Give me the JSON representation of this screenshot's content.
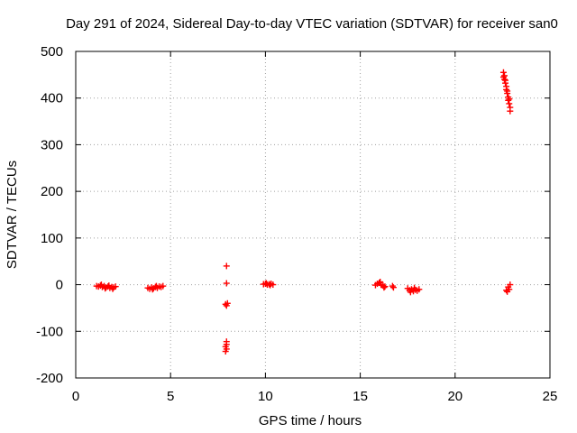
{
  "chart_data": {
    "type": "scatter",
    "title": "Day 291 of 2024, Sidereal Day-to-day VTEC variation (SDTVAR) for receiver san0",
    "xlabel": "GPS time / hours",
    "ylabel": "SDTVAR / TECUs",
    "xlim": [
      0,
      25
    ],
    "ylim": [
      -200,
      500
    ],
    "xticks": [
      0,
      5,
      10,
      15,
      20,
      25
    ],
    "yticks": [
      -200,
      -100,
      0,
      100,
      200,
      300,
      400,
      500
    ],
    "xtick_labels": [
      "0",
      "5",
      "10",
      "15",
      "20",
      "25"
    ],
    "ytick_labels": [
      "-200",
      "-100",
      "0",
      "100",
      "200",
      "300",
      "400",
      "500"
    ],
    "grid": true,
    "marker": "plus",
    "color": "#ff0000",
    "series": [
      {
        "name": "SDTVAR",
        "points": [
          [
            1.1,
            -3
          ],
          [
            1.2,
            -4
          ],
          [
            1.3,
            -2
          ],
          [
            1.4,
            -5
          ],
          [
            1.5,
            -3
          ],
          [
            1.6,
            -6
          ],
          [
            1.7,
            -4
          ],
          [
            1.8,
            -7
          ],
          [
            1.9,
            -5
          ],
          [
            2.0,
            -6
          ],
          [
            2.1,
            -4
          ],
          [
            1.35,
            0
          ],
          [
            1.55,
            -8
          ],
          [
            1.75,
            -2
          ],
          [
            1.95,
            -9
          ],
          [
            3.8,
            -7
          ],
          [
            3.9,
            -9
          ],
          [
            4.0,
            -6
          ],
          [
            4.1,
            -8
          ],
          [
            4.2,
            -5
          ],
          [
            4.3,
            -7
          ],
          [
            4.4,
            -4
          ],
          [
            4.5,
            -5
          ],
          [
            4.6,
            -3
          ],
          [
            4.05,
            -10
          ],
          [
            4.25,
            -3
          ],
          [
            7.95,
            40
          ],
          [
            7.95,
            3
          ],
          [
            7.9,
            -42
          ],
          [
            7.95,
            -45
          ],
          [
            8.0,
            -40
          ],
          [
            7.95,
            -122
          ],
          [
            7.95,
            -128
          ],
          [
            7.9,
            -133
          ],
          [
            7.95,
            -138
          ],
          [
            7.9,
            -143
          ],
          [
            9.9,
            1
          ],
          [
            10.0,
            2
          ],
          [
            10.1,
            0
          ],
          [
            10.2,
            1
          ],
          [
            10.3,
            2
          ],
          [
            10.4,
            0
          ],
          [
            10.05,
            3
          ],
          [
            10.25,
            -1
          ],
          [
            15.8,
            -1
          ],
          [
            15.9,
            2
          ],
          [
            16.0,
            4
          ],
          [
            16.1,
            0
          ],
          [
            16.2,
            -2
          ],
          [
            16.3,
            -4
          ],
          [
            16.05,
            6
          ],
          [
            16.25,
            -6
          ],
          [
            16.7,
            -3
          ],
          [
            16.75,
            -6
          ],
          [
            17.5,
            -8
          ],
          [
            17.6,
            -12
          ],
          [
            17.7,
            -10
          ],
          [
            17.8,
            -14
          ],
          [
            17.9,
            -11
          ],
          [
            18.0,
            -13
          ],
          [
            18.1,
            -10
          ],
          [
            17.65,
            -16
          ],
          [
            17.85,
            -7
          ],
          [
            22.55,
            455
          ],
          [
            22.6,
            448
          ],
          [
            22.6,
            440
          ],
          [
            22.65,
            432
          ],
          [
            22.7,
            425
          ],
          [
            22.7,
            418
          ],
          [
            22.75,
            410
          ],
          [
            22.8,
            402
          ],
          [
            22.8,
            395
          ],
          [
            22.85,
            388
          ],
          [
            22.9,
            380
          ],
          [
            22.9,
            372
          ],
          [
            22.55,
            445
          ],
          [
            22.65,
            438
          ],
          [
            22.75,
            415
          ],
          [
            22.85,
            398
          ],
          [
            22.7,
            -12
          ],
          [
            22.8,
            -5
          ],
          [
            22.85,
            -10
          ],
          [
            22.9,
            0
          ],
          [
            22.75,
            -15
          ]
        ]
      }
    ]
  }
}
